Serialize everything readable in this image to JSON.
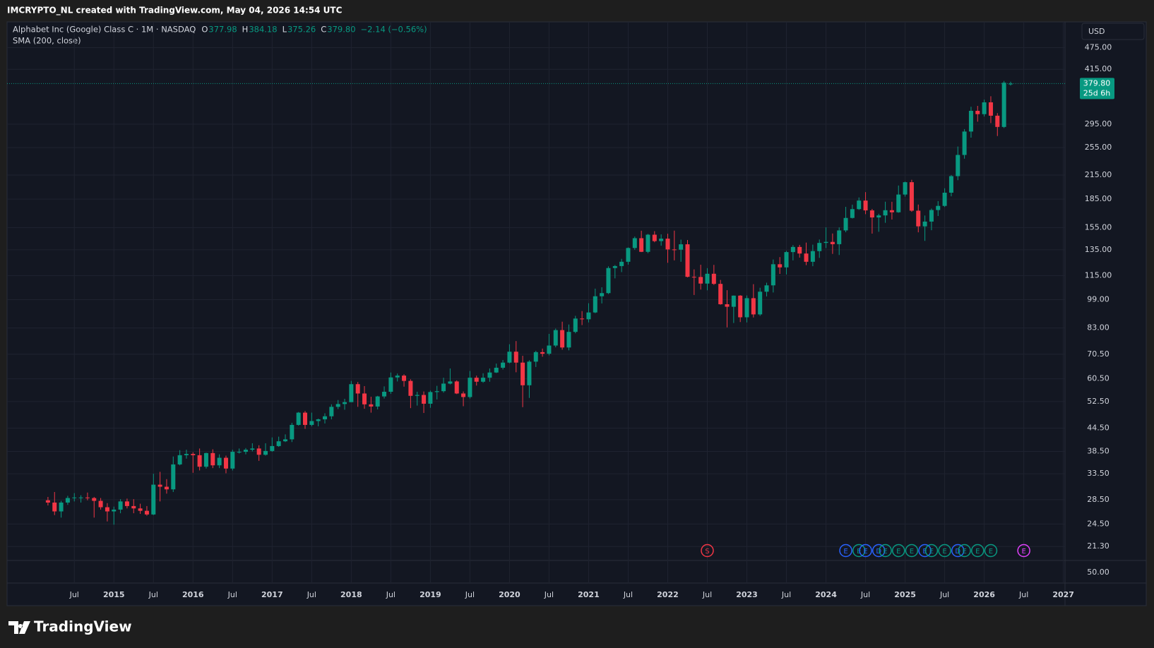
{
  "header": {
    "text": "IMCRYPTO_NL created with TradingView.com, May 04, 2026 14:54 UTC"
  },
  "logo": {
    "text": "TradingView"
  },
  "chart_data": {
    "type": "candlestick",
    "title": "Alphabet Inc (Google) Class C · 1M · NASDAQ",
    "ohlc_labels": [
      "O",
      "H",
      "L",
      "C"
    ],
    "last_value_labels": [
      "377.98",
      "384.18",
      "375.26",
      "379.80"
    ],
    "change_text": "−2.14 (−0.56%)",
    "indicator": "SMA (200, close)",
    "currency": "USD",
    "countdown": "25d 6h",
    "up_color": "#089981",
    "down_color": "#f23645",
    "log_scale": true,
    "grid": true,
    "ylim": [
      19.7,
      557.6
    ],
    "yticks": [
      {
        "value": 475,
        "label": "475.00"
      },
      {
        "value": 415,
        "label": "415.00"
      },
      {
        "value": 295,
        "label": "295.00"
      },
      {
        "value": 255,
        "label": "255.00"
      },
      {
        "value": 215,
        "label": "215.00"
      },
      {
        "value": 185,
        "label": "185.00"
      },
      {
        "value": 155,
        "label": "155.00"
      },
      {
        "value": 135,
        "label": "135.00"
      },
      {
        "value": 115,
        "label": "115.00"
      },
      {
        "value": 99,
        "label": "99.00"
      },
      {
        "value": 83,
        "label": "83.00"
      },
      {
        "value": 70.5,
        "label": "70.50"
      },
      {
        "value": 60.5,
        "label": "60.50"
      },
      {
        "value": 52.5,
        "label": "52.50"
      },
      {
        "value": 44.5,
        "label": "44.50"
      },
      {
        "value": 38.5,
        "label": "38.50"
      },
      {
        "value": 33.5,
        "label": "33.50"
      },
      {
        "value": 28.5,
        "label": "28.50"
      },
      {
        "value": 24.5,
        "label": "24.50"
      },
      {
        "value": 21.3,
        "label": "21.30"
      }
    ],
    "subpane_ticks": [
      {
        "value": 50,
        "label": "50.00"
      }
    ],
    "xticks": [
      {
        "value": "2014-07",
        "label": "Jul"
      },
      {
        "value": "2015-01",
        "label": "2015"
      },
      {
        "value": "2015-07",
        "label": "Jul"
      },
      {
        "value": "2016-01",
        "label": "2016"
      },
      {
        "value": "2016-07",
        "label": "Jul"
      },
      {
        "value": "2017-01",
        "label": "2017"
      },
      {
        "value": "2017-07",
        "label": "Jul"
      },
      {
        "value": "2018-01",
        "label": "2018"
      },
      {
        "value": "2018-07",
        "label": "Jul"
      },
      {
        "value": "2019-01",
        "label": "2019"
      },
      {
        "value": "2019-07",
        "label": "Jul"
      },
      {
        "value": "2020-01",
        "label": "2020"
      },
      {
        "value": "2020-07",
        "label": "Jul"
      },
      {
        "value": "2021-01",
        "label": "2021"
      },
      {
        "value": "2021-07",
        "label": "Jul"
      },
      {
        "value": "2022-01",
        "label": "2022"
      },
      {
        "value": "2022-07",
        "label": "Jul"
      },
      {
        "value": "2023-01",
        "label": "2023"
      },
      {
        "value": "2023-07",
        "label": "Jul"
      },
      {
        "value": "2024-01",
        "label": "2024"
      },
      {
        "value": "2024-07",
        "label": "Jul"
      },
      {
        "value": "2025-01",
        "label": "2025"
      },
      {
        "value": "2025-07",
        "label": "Jul"
      },
      {
        "value": "2026-01",
        "label": "2026"
      },
      {
        "value": "2026-07",
        "label": "Jul"
      },
      {
        "value": "2027-01",
        "label": "2027"
      }
    ],
    "events": [
      {
        "label": "S",
        "x": "2022-07",
        "color": "#f23645"
      },
      {
        "label": "E",
        "x": "2024-04",
        "color": "#2962ff"
      },
      {
        "label": "E",
        "x": "2024-06",
        "color": "#089981"
      },
      {
        "label": "E",
        "x": "2024-07",
        "color": "#2962ff"
      },
      {
        "label": "D",
        "x": "2024-09",
        "color": "#2962ff"
      },
      {
        "label": "E",
        "x": "2024-10",
        "color": "#089981"
      },
      {
        "label": "E",
        "x": "2024-12",
        "color": "#089981"
      },
      {
        "label": "E",
        "x": "2025-02",
        "color": "#089981"
      },
      {
        "label": "E",
        "x": "2025-04",
        "color": "#2962ff"
      },
      {
        "label": "E",
        "x": "2025-05",
        "color": "#089981"
      },
      {
        "label": "E",
        "x": "2025-07",
        "color": "#089981"
      },
      {
        "label": "D",
        "x": "2025-09",
        "color": "#2962ff"
      },
      {
        "label": "E",
        "x": "2025-10",
        "color": "#089981"
      },
      {
        "label": "E",
        "x": "2025-12",
        "color": "#089981"
      },
      {
        "label": "E",
        "x": "2026-02",
        "color": "#089981"
      },
      {
        "label": "E",
        "x": "2026-07",
        "color": "#e040fb"
      }
    ],
    "x": [
      "2014-03",
      "2014-04",
      "2014-05",
      "2014-06",
      "2014-07",
      "2014-08",
      "2014-09",
      "2014-10",
      "2014-11",
      "2014-12",
      "2015-01",
      "2015-02",
      "2015-03",
      "2015-04",
      "2015-05",
      "2015-06",
      "2015-07",
      "2015-08",
      "2015-09",
      "2015-10",
      "2015-11",
      "2015-12",
      "2016-01",
      "2016-02",
      "2016-03",
      "2016-04",
      "2016-05",
      "2016-06",
      "2016-07",
      "2016-08",
      "2016-09",
      "2016-10",
      "2016-11",
      "2016-12",
      "2017-01",
      "2017-02",
      "2017-03",
      "2017-04",
      "2017-05",
      "2017-06",
      "2017-07",
      "2017-08",
      "2017-09",
      "2017-10",
      "2017-11",
      "2017-12",
      "2018-01",
      "2018-02",
      "2018-03",
      "2018-04",
      "2018-05",
      "2018-06",
      "2018-07",
      "2018-08",
      "2018-09",
      "2018-10",
      "2018-11",
      "2018-12",
      "2019-01",
      "2019-02",
      "2019-03",
      "2019-04",
      "2019-05",
      "2019-06",
      "2019-07",
      "2019-08",
      "2019-09",
      "2019-10",
      "2019-11",
      "2019-12",
      "2020-01",
      "2020-02",
      "2020-03",
      "2020-04",
      "2020-05",
      "2020-06",
      "2020-07",
      "2020-08",
      "2020-09",
      "2020-10",
      "2020-11",
      "2020-12",
      "2021-01",
      "2021-02",
      "2021-03",
      "2021-04",
      "2021-05",
      "2021-06",
      "2021-07",
      "2021-08",
      "2021-09",
      "2021-10",
      "2021-11",
      "2021-12",
      "2022-01",
      "2022-02",
      "2022-03",
      "2022-04",
      "2022-05",
      "2022-06",
      "2022-07",
      "2022-08",
      "2022-09",
      "2022-10",
      "2022-11",
      "2022-12",
      "2023-01",
      "2023-02",
      "2023-03",
      "2023-04",
      "2023-05",
      "2023-06",
      "2023-07",
      "2023-08",
      "2023-09",
      "2023-10",
      "2023-11",
      "2023-12",
      "2024-01",
      "2024-02",
      "2024-03",
      "2024-04",
      "2024-05",
      "2024-06",
      "2024-07",
      "2024-08",
      "2024-09",
      "2024-10",
      "2024-11",
      "2024-12",
      "2025-01",
      "2025-02",
      "2025-03",
      "2025-04",
      "2025-05",
      "2025-06",
      "2025-07",
      "2025-08",
      "2025-09",
      "2025-10",
      "2025-11",
      "2025-12",
      "2026-01",
      "2026-02",
      "2026-03",
      "2026-04",
      "2026-05"
    ],
    "ohlc": [
      [
        28.4,
        29,
        27.5,
        28
      ],
      [
        28,
        29.9,
        25.9,
        26.5
      ],
      [
        26.5,
        28.3,
        25.5,
        28
      ],
      [
        28,
        29.2,
        27.6,
        28.8
      ],
      [
        28.8,
        29.7,
        28.2,
        28.9
      ],
      [
        28.9,
        29.3,
        28,
        28.9
      ],
      [
        28.9,
        29.8,
        28.4,
        28.8
      ],
      [
        28.8,
        29,
        25.5,
        28.3
      ],
      [
        28.3,
        28.8,
        26.8,
        27.2
      ],
      [
        27.2,
        27.9,
        24.9,
        26.5
      ],
      [
        26.5,
        27.3,
        24.4,
        26.8
      ],
      [
        26.8,
        28.6,
        26.2,
        28.2
      ],
      [
        28.2,
        28.7,
        27,
        27.4
      ],
      [
        27.4,
        28.6,
        26.2,
        27
      ],
      [
        27,
        27.8,
        26.1,
        26.6
      ],
      [
        26.6,
        27.4,
        25.8,
        26
      ],
      [
        26,
        33.5,
        25.9,
        31.3
      ],
      [
        31.3,
        33.9,
        28.2,
        30.9
      ],
      [
        30.9,
        32.4,
        29.6,
        30.4
      ],
      [
        30.4,
        37.3,
        29.9,
        35.5
      ],
      [
        35.5,
        38.8,
        35.3,
        37.6
      ],
      [
        37.6,
        38.9,
        36.8,
        37.9
      ],
      [
        37.9,
        38.3,
        33.7,
        37.6
      ],
      [
        37.6,
        39.2,
        34.2,
        35
      ],
      [
        35,
        38.2,
        34.6,
        38.1
      ],
      [
        38.1,
        39,
        34.7,
        35.3
      ],
      [
        35.3,
        37.8,
        34.7,
        37
      ],
      [
        37,
        37.5,
        33.6,
        34.6
      ],
      [
        34.6,
        38.9,
        34.2,
        38.4
      ],
      [
        38.4,
        39.2,
        38,
        38.4
      ],
      [
        38.4,
        39.3,
        37.8,
        38.9
      ],
      [
        38.9,
        40.5,
        38.5,
        39.2
      ],
      [
        39.2,
        40,
        36.3,
        37.7
      ],
      [
        37.7,
        40.5,
        37.5,
        38.6
      ],
      [
        38.6,
        42,
        38.4,
        39.8
      ],
      [
        39.8,
        42.2,
        39.6,
        41
      ],
      [
        41,
        42.8,
        40.8,
        41.5
      ],
      [
        41.5,
        46,
        40.8,
        45.4
      ],
      [
        45.4,
        49.2,
        45.2,
        49
      ],
      [
        49,
        49.5,
        44.3,
        45.4
      ],
      [
        45.4,
        49,
        45,
        46.5
      ],
      [
        46.5,
        47.2,
        45,
        47
      ],
      [
        47,
        48.8,
        45.8,
        47.9
      ],
      [
        47.9,
        51.6,
        47,
        50.8
      ],
      [
        50.8,
        53,
        50.1,
        51.7
      ],
      [
        51.7,
        53.4,
        49.9,
        52.3
      ],
      [
        52.3,
        59.7,
        52.3,
        58.5
      ],
      [
        58.5,
        59.3,
        50.8,
        55.2
      ],
      [
        55.2,
        57.8,
        50.2,
        51.6
      ],
      [
        51.6,
        54.1,
        49,
        50.9
      ],
      [
        50.9,
        54.4,
        50,
        54.2
      ],
      [
        54.2,
        57.7,
        53.5,
        55.8
      ],
      [
        55.8,
        62.9,
        55.1,
        61
      ],
      [
        61,
        62.5,
        59.5,
        61.7
      ],
      [
        61.7,
        62.2,
        57.6,
        59.7
      ],
      [
        59.7,
        60.3,
        50.4,
        54.4
      ],
      [
        54.4,
        55.8,
        51.2,
        54.7
      ],
      [
        54.7,
        55.9,
        48.9,
        51.8
      ],
      [
        51.8,
        56.2,
        50.5,
        55.7
      ],
      [
        55.7,
        57.9,
        53.2,
        56
      ],
      [
        56,
        60.9,
        55.5,
        58.7
      ],
      [
        58.7,
        64.5,
        58.4,
        59.5
      ],
      [
        59.5,
        59.9,
        55,
        55.2
      ],
      [
        55.2,
        55.9,
        51,
        54
      ],
      [
        54,
        63.5,
        53.5,
        60.9
      ],
      [
        60.9,
        61.7,
        58,
        59.4
      ],
      [
        59.4,
        62.6,
        59,
        60.9
      ],
      [
        60.9,
        64.5,
        59.4,
        62.9
      ],
      [
        62.9,
        66.5,
        62.7,
        64.8
      ],
      [
        64.8,
        68,
        64.1,
        66.9
      ],
      [
        66.9,
        75,
        66.6,
        71.6
      ],
      [
        71.6,
        76.5,
        63,
        66.9
      ],
      [
        66.9,
        69.8,
        50.7,
        58.1
      ],
      [
        58.1,
        67.9,
        53.7,
        67.3
      ],
      [
        67.3,
        72,
        65.1,
        71.4
      ],
      [
        71.4,
        73,
        69.4,
        70.7
      ],
      [
        70.7,
        80,
        70,
        74.4
      ],
      [
        74.4,
        82.7,
        73.6,
        81.9
      ],
      [
        81.9,
        86.3,
        72.5,
        73.5
      ],
      [
        73.5,
        84.8,
        72.2,
        81
      ],
      [
        81,
        89.5,
        80.3,
        88
      ],
      [
        88,
        92.2,
        84.5,
        87.6
      ],
      [
        87.6,
        96.8,
        85.9,
        91.4
      ],
      [
        91.4,
        106,
        91,
        101.1
      ],
      [
        101.1,
        106.9,
        96.7,
        103.1
      ],
      [
        103.1,
        121.8,
        102.5,
        120.5
      ],
      [
        120.5,
        122.8,
        113,
        122
      ],
      [
        122,
        127.6,
        117.5,
        125.3
      ],
      [
        125.3,
        137,
        123.1,
        136.5
      ],
      [
        136.5,
        146.6,
        135,
        145.1
      ],
      [
        145.1,
        152,
        133.1,
        133.3
      ],
      [
        133.3,
        149,
        132.2,
        148.3
      ],
      [
        148.3,
        151.6,
        141.5,
        142.5
      ],
      [
        142.5,
        148.6,
        138.5,
        144.7
      ],
      [
        144.7,
        149.2,
        124.5,
        135.3
      ],
      [
        135.3,
        152.1,
        126.4,
        135.1
      ],
      [
        135.1,
        143.8,
        125.3,
        139.7
      ],
      [
        139.7,
        143.5,
        113.7,
        114.1
      ],
      [
        114.1,
        119.5,
        101.9,
        114
      ],
      [
        114,
        123,
        105.4,
        109.4
      ],
      [
        109.4,
        120.4,
        104.9,
        116.3
      ],
      [
        116.3,
        122.9,
        108.5,
        109.2
      ],
      [
        109.2,
        111.9,
        95.9,
        96.2
      ],
      [
        96.2,
        105,
        83.3,
        94.7
      ],
      [
        94.7,
        101.6,
        85.6,
        101.5
      ],
      [
        101.5,
        101.8,
        86.1,
        88.7
      ],
      [
        88.7,
        101.6,
        85.9,
        99.9
      ],
      [
        99.9,
        109,
        88.6,
        90.3
      ],
      [
        90.3,
        106.6,
        89.5,
        104
      ],
      [
        104,
        110,
        101,
        108.2
      ],
      [
        108.2,
        127.1,
        103.5,
        123.4
      ],
      [
        123.4,
        129,
        116.2,
        121
      ],
      [
        121,
        134.1,
        115.8,
        133.1
      ],
      [
        133.1,
        139,
        126.4,
        137.4
      ],
      [
        137.4,
        139.2,
        128.6,
        131.9
      ],
      [
        131.9,
        141.2,
        122.7,
        125.3
      ],
      [
        125.3,
        139.4,
        121.9,
        133.9
      ],
      [
        133.9,
        143.9,
        128.4,
        140.9
      ],
      [
        140.9,
        155.2,
        136.5,
        141.8
      ],
      [
        141.8,
        149.4,
        131.6,
        139.8
      ],
      [
        139.8,
        155.2,
        130.7,
        152.3
      ],
      [
        152.3,
        176.4,
        150.6,
        164.6
      ],
      [
        164.6,
        178.8,
        164,
        173.9
      ],
      [
        173.9,
        187,
        173,
        183.4
      ],
      [
        183.4,
        193.3,
        168.5,
        172.5
      ],
      [
        172.5,
        174.1,
        149.3,
        165.1
      ],
      [
        165.1,
        168.9,
        151,
        167.2
      ],
      [
        167.2,
        182.1,
        159.7,
        172.7
      ],
      [
        172.7,
        182,
        163,
        170.5
      ],
      [
        170.5,
        201.4,
        170,
        190.4
      ],
      [
        190.4,
        206.4,
        188,
        205.6
      ],
      [
        205.6,
        208.7,
        171,
        172.2
      ],
      [
        172.2,
        178.9,
        150.5,
        156.2
      ],
      [
        156.2,
        167.1,
        142.7,
        160.9
      ],
      [
        160.9,
        174.5,
        152.5,
        172.9
      ],
      [
        172.9,
        182.8,
        166.6,
        177.4
      ],
      [
        177.4,
        198,
        176.2,
        192.6
      ],
      [
        192.6,
        215,
        188.3,
        213.5
      ],
      [
        213.5,
        256.7,
        208.2,
        243.6
      ],
      [
        243.6,
        286.1,
        238,
        281.8
      ],
      [
        281.8,
        328.8,
        271.3,
        320.6
      ],
      [
        320.6,
        330.6,
        299.6,
        314
      ],
      [
        314,
        343.7,
        309.5,
        338
      ],
      [
        338,
        351,
        297,
        311
      ],
      [
        311,
        316,
        274,
        290
      ],
      [
        290,
        386,
        288,
        381.94
      ],
      [
        377.98,
        384.18,
        375.26,
        379.8
      ]
    ]
  }
}
